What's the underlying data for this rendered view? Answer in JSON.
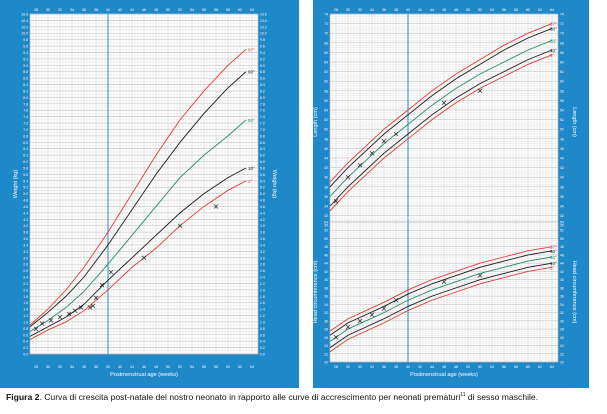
{
  "caption": {
    "label": "Figura 2",
    "text_before_sup": ". Curva di crescita post-natale del nostro neonato in rapporto alle curve di accrescimento per neonati prematuri",
    "sup": "11",
    "text_after_sup": " di sesso maschile."
  },
  "colors": {
    "frame": "#1f88c9",
    "p97": "#e23a3a",
    "p90": "#1a1a1a",
    "p50": "#2a8a6e",
    "p10": "#1a1a1a",
    "p3": "#e23a3a",
    "marker": "#222222",
    "vline": "#1f88c9"
  },
  "chart_data": [
    {
      "type": "line",
      "id": "weight",
      "xlabel": "Postmenstrual age (weeks)",
      "ylabel": "Weight (kg)",
      "xlim": [
        27,
        65
      ],
      "ylim": [
        0,
        10.6
      ],
      "x_ticks": [
        28,
        30,
        32,
        34,
        36,
        38,
        40,
        42,
        44,
        46,
        48,
        50,
        52,
        54,
        56,
        58,
        60,
        62,
        64
      ],
      "y_ticks": [
        0,
        0.2,
        0.4,
        0.6,
        0.8,
        1.0,
        1.2,
        1.4,
        1.6,
        1.8,
        2.0,
        2.2,
        2.4,
        2.6,
        2.8,
        3.0,
        3.2,
        3.4,
        3.6,
        3.8,
        4.0,
        4.2,
        4.4,
        4.6,
        4.8,
        5.0,
        5.2,
        5.4,
        5.6,
        5.8,
        6.0,
        6.2,
        6.4,
        6.6,
        6.8,
        7.0,
        7.2,
        7.4,
        7.6,
        7.8,
        8.0,
        8.2,
        8.4,
        8.6,
        8.8,
        9.0,
        9.2,
        9.4,
        9.6,
        9.8,
        10.0,
        10.2,
        10.4,
        10.6
      ],
      "grid": true,
      "reference_line_x": 40,
      "curves": [
        {
          "name": "97°",
          "x": [
            27,
            30,
            33,
            36,
            40,
            44,
            48,
            52,
            56,
            60,
            63
          ],
          "y": [
            0.9,
            1.4,
            2.0,
            2.7,
            3.8,
            5.0,
            6.2,
            7.3,
            8.2,
            9.0,
            9.5
          ]
        },
        {
          "name": "90°",
          "x": [
            27,
            30,
            33,
            36,
            40,
            44,
            48,
            52,
            56,
            60,
            63
          ],
          "y": [
            0.85,
            1.3,
            1.8,
            2.4,
            3.4,
            4.5,
            5.6,
            6.6,
            7.5,
            8.3,
            8.8
          ]
        },
        {
          "name": "50°",
          "x": [
            27,
            30,
            33,
            36,
            40,
            44,
            48,
            52,
            56,
            60,
            63
          ],
          "y": [
            0.7,
            1.05,
            1.45,
            1.95,
            2.8,
            3.7,
            4.6,
            5.5,
            6.2,
            6.8,
            7.3
          ]
        },
        {
          "name": "10°",
          "x": [
            27,
            30,
            33,
            36,
            40,
            44,
            48,
            52,
            56,
            60,
            63
          ],
          "y": [
            0.55,
            0.85,
            1.15,
            1.55,
            2.3,
            3.0,
            3.7,
            4.4,
            5.0,
            5.5,
            5.8
          ]
        },
        {
          "name": "3°",
          "x": [
            27,
            30,
            33,
            36,
            40,
            44,
            48,
            52,
            56,
            60,
            63
          ],
          "y": [
            0.45,
            0.75,
            1.0,
            1.35,
            2.0,
            2.7,
            3.3,
            4.0,
            4.6,
            5.1,
            5.4
          ]
        }
      ],
      "patient": {
        "x": [
          28,
          29,
          30.5,
          32,
          33.5,
          34.5,
          35.5,
          37,
          37.5,
          38,
          39,
          40.5,
          46,
          52,
          58
        ],
        "y": [
          0.78,
          0.95,
          1.05,
          1.15,
          1.25,
          1.35,
          1.45,
          1.45,
          1.5,
          1.75,
          2.15,
          2.55,
          3.0,
          4.0,
          4.6
        ]
      }
    },
    {
      "type": "line",
      "id": "length",
      "xlabel": "",
      "ylabel": "Length (cm)",
      "xlim": [
        27,
        65
      ],
      "ylim": [
        29,
        74
      ],
      "x_ticks": [
        28,
        30,
        32,
        34,
        36,
        38,
        40,
        42,
        44,
        46,
        48,
        50,
        52,
        54,
        56,
        58,
        60,
        62,
        64
      ],
      "y_ticks": [
        30,
        32,
        34,
        36,
        38,
        40,
        42,
        44,
        46,
        48,
        50,
        52,
        54,
        56,
        58,
        60,
        62,
        64,
        66,
        68,
        70,
        72,
        74
      ],
      "grid": true,
      "reference_line_x": 40,
      "curves": [
        {
          "name": "97°",
          "x": [
            27,
            30,
            33,
            36,
            40,
            44,
            48,
            52,
            56,
            60,
            64
          ],
          "y": [
            39,
            43,
            46.5,
            50,
            54,
            58,
            61.5,
            64.5,
            67.5,
            70,
            72
          ]
        },
        {
          "name": "90°",
          "x": [
            27,
            30,
            33,
            36,
            40,
            44,
            48,
            52,
            56,
            60,
            64
          ],
          "y": [
            38,
            42,
            45.5,
            49,
            53,
            57,
            60.5,
            63.5,
            66.5,
            69,
            71
          ]
        },
        {
          "name": "50°",
          "x": [
            27,
            30,
            33,
            36,
            40,
            44,
            48,
            52,
            56,
            60,
            64
          ],
          "y": [
            36,
            40,
            43.5,
            47,
            51,
            55,
            58.5,
            61.5,
            64,
            66.5,
            68.5
          ]
        },
        {
          "name": "10°",
          "x": [
            27,
            30,
            33,
            36,
            40,
            44,
            48,
            52,
            56,
            60,
            64
          ],
          "y": [
            34,
            38,
            41.5,
            45,
            49,
            53,
            56.5,
            59.5,
            62,
            64.5,
            66.5
          ]
        },
        {
          "name": "3°",
          "x": [
            27,
            30,
            33,
            36,
            40,
            44,
            48,
            52,
            56,
            60,
            64
          ],
          "y": [
            33,
            37,
            40.5,
            44,
            48,
            52,
            55.5,
            58.5,
            61,
            63.5,
            65.5
          ]
        }
      ],
      "patient": {
        "x": [
          28,
          30,
          32,
          34,
          36,
          38,
          46,
          52
        ],
        "y": [
          35,
          40,
          42.5,
          45,
          47.5,
          49,
          55.5,
          58
        ]
      }
    },
    {
      "type": "line",
      "id": "head_circumference",
      "xlabel": "Postmenstrual age (weeks)",
      "ylabel": "Head circumference (cm)",
      "xlim": [
        27,
        65
      ],
      "ylim": [
        20,
        54
      ],
      "x_ticks": [
        28,
        30,
        32,
        34,
        36,
        38,
        40,
        42,
        44,
        46,
        48,
        50,
        52,
        54,
        56,
        58,
        60,
        62,
        64
      ],
      "y_ticks": [
        20,
        22,
        24,
        26,
        28,
        30,
        32,
        34,
        36,
        38,
        40,
        42,
        44,
        46,
        48,
        50,
        52,
        54
      ],
      "grid": true,
      "reference_line_x": 40,
      "curves": [
        {
          "name": "97°",
          "x": [
            27,
            30,
            33,
            36,
            40,
            44,
            48,
            52,
            56,
            60,
            64
          ],
          "y": [
            27.5,
            30.5,
            32.5,
            34.5,
            37.5,
            40,
            42,
            44,
            45.5,
            47,
            48
          ]
        },
        {
          "name": "90°",
          "x": [
            27,
            30,
            33,
            36,
            40,
            44,
            48,
            52,
            56,
            60,
            64
          ],
          "y": [
            26.5,
            29.5,
            31.5,
            33.5,
            36.5,
            39,
            41,
            43,
            44.5,
            46,
            47
          ]
        },
        {
          "name": "50°",
          "x": [
            27,
            30,
            33,
            36,
            40,
            44,
            48,
            52,
            56,
            60,
            64
          ],
          "y": [
            25,
            28,
            30,
            32,
            35,
            37.5,
            39.5,
            41.5,
            43,
            44.5,
            45.5
          ]
        },
        {
          "name": "10°",
          "x": [
            27,
            30,
            33,
            36,
            40,
            44,
            48,
            52,
            56,
            60,
            64
          ],
          "y": [
            23.5,
            26.5,
            28.5,
            30.5,
            33.5,
            36,
            38,
            40,
            41.5,
            43,
            44
          ]
        },
        {
          "name": "3°",
          "x": [
            27,
            30,
            33,
            36,
            40,
            44,
            48,
            52,
            56,
            60,
            64
          ],
          "y": [
            22.5,
            25.5,
            27.5,
            29.5,
            32.5,
            35,
            37,
            39,
            40.5,
            42,
            43
          ]
        }
      ],
      "patient": {
        "x": [
          28,
          30,
          32,
          34,
          36,
          38,
          46,
          52
        ],
        "y": [
          26,
          28.5,
          30,
          31.5,
          33,
          35,
          39.5,
          41
        ]
      }
    }
  ]
}
